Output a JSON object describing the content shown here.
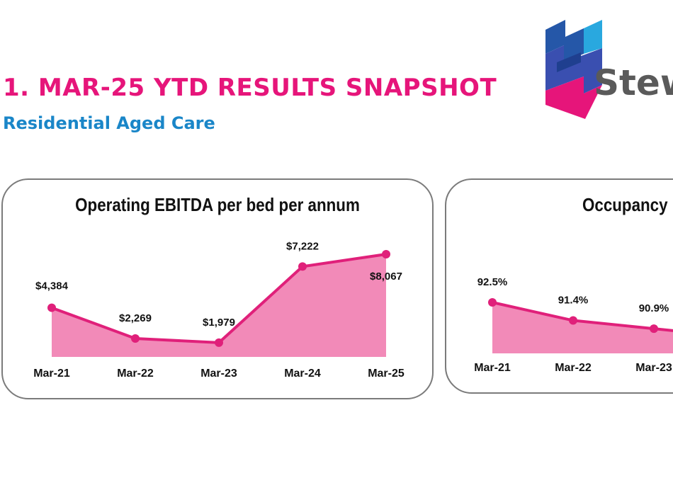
{
  "slide": {
    "title": "1.  MAR-25 YTD RESULTS SNAPSHOT",
    "subtitle": "Residential Aged Care"
  },
  "logo": {
    "text": "Stew"
  },
  "colors": {
    "title": "#e6157a",
    "subtitle": "#1a86c8",
    "line": "#e0207a",
    "area": "#f28ab8",
    "panel_border": "#7b7b7b",
    "logo_blue": "#2557a8",
    "logo_magenta": "#e6157a",
    "logo_cyan": "#29a8df"
  },
  "chart_data": [
    {
      "type": "area",
      "title": "Operating EBITDA per bed per annum",
      "categories": [
        "Mar-21",
        "Mar-22",
        "Mar-23",
        "Mar-24",
        "Mar-25"
      ],
      "values": [
        4384,
        2269,
        1979,
        7222,
        8067
      ],
      "data_labels": [
        "$4,384",
        "$2,269",
        "$1,979",
        "$7,222",
        "$8,067"
      ],
      "xlabel": "",
      "ylabel": "",
      "grid": false
    },
    {
      "type": "area",
      "title": "Occupancy",
      "categories": [
        "Mar-21",
        "Mar-22",
        "Mar-23"
      ],
      "values": [
        92.5,
        91.4,
        90.9
      ],
      "data_labels": [
        "92.5%",
        "91.4%",
        "90.9%"
      ],
      "xlabel": "",
      "ylabel": "",
      "grid": false
    }
  ]
}
